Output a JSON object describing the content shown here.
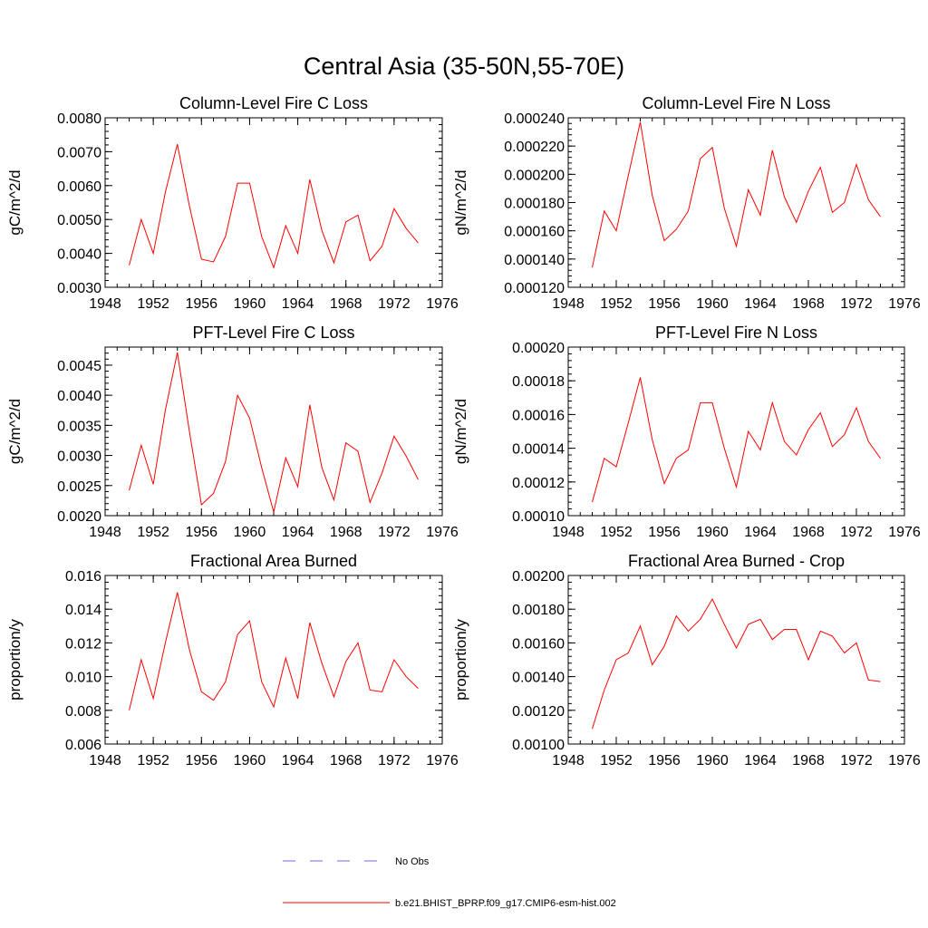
{
  "title": "Central Asia (35-50N,55-70E)",
  "colors": {
    "model": "#ff0000",
    "obs": "#6a6aff",
    "axis": "#000000"
  },
  "legend": {
    "obs_label": "No Obs",
    "model_label": "b.e21.BHIST_BPRP.f09_g17.CMIP6-esm-hist.002"
  },
  "chart_data": [
    {
      "type": "line",
      "title": "Column-Level Fire C Loss",
      "ylabel": "gC/m^2/d",
      "xlim": [
        1948,
        1976
      ],
      "ylim": [
        0.003,
        0.008
      ],
      "xticks": [
        "1948",
        "1952",
        "1956",
        "1960",
        "1964",
        "1968",
        "1972",
        "1976"
      ],
      "yticks": [
        "0.0030",
        "0.0040",
        "0.0050",
        "0.0060",
        "0.0070",
        "0.0080"
      ],
      "x": [
        1950,
        1951,
        1952,
        1953,
        1954,
        1955,
        1956,
        1957,
        1958,
        1959,
        1960,
        1961,
        1962,
        1963,
        1964,
        1965,
        1966,
        1967,
        1968,
        1969,
        1970,
        1971,
        1972,
        1973,
        1974
      ],
      "series": [
        {
          "values": [
            0.00365,
            0.005,
            0.004,
            0.0058,
            0.00722,
            0.0054,
            0.00383,
            0.00375,
            0.0045,
            0.00607,
            0.00607,
            0.0045,
            0.00358,
            0.00482,
            0.004,
            0.00618,
            0.00468,
            0.00372,
            0.00493,
            0.00513,
            0.00378,
            0.00421,
            0.00532,
            0.00474,
            0.00431
          ]
        }
      ]
    },
    {
      "type": "line",
      "title": "Column-Level Fire N Loss",
      "ylabel": "gN/m^2/d",
      "xlim": [
        1948,
        1976
      ],
      "ylim": [
        0.00012,
        0.00024
      ],
      "xticks": [
        "1948",
        "1952",
        "1956",
        "1960",
        "1964",
        "1968",
        "1972",
        "1976"
      ],
      "yticks": [
        "0.000120",
        "0.000140",
        "0.000160",
        "0.000180",
        "0.000200",
        "0.000220",
        "0.000240"
      ],
      "x": [
        1950,
        1951,
        1952,
        1953,
        1954,
        1955,
        1956,
        1957,
        1958,
        1959,
        1960,
        1961,
        1962,
        1963,
        1964,
        1965,
        1966,
        1967,
        1968,
        1969,
        1970,
        1971,
        1972,
        1973,
        1974
      ],
      "series": [
        {
          "values": [
            0.000134,
            0.000174,
            0.00016,
            0.000199,
            0.000237,
            0.000185,
            0.000153,
            0.000161,
            0.000174,
            0.000211,
            0.000219,
            0.000176,
            0.000149,
            0.000189,
            0.000171,
            0.000217,
            0.000184,
            0.000166,
            0.000188,
            0.000205,
            0.000173,
            0.00018,
            0.000207,
            0.000182,
            0.00017
          ]
        }
      ]
    },
    {
      "type": "line",
      "title": "PFT-Level Fire C Loss",
      "ylabel": "gC/m^2/d",
      "xlim": [
        1948,
        1976
      ],
      "ylim": [
        0.002,
        0.0048
      ],
      "xticks": [
        "1948",
        "1952",
        "1956",
        "1960",
        "1964",
        "1968",
        "1972",
        "1976"
      ],
      "yticks": [
        "0.0020",
        "0.0025",
        "0.0030",
        "0.0035",
        "0.0040",
        "0.0045"
      ],
      "ytickvals": [
        0.002,
        0.0025,
        0.003,
        0.0035,
        0.004,
        0.0045
      ],
      "x": [
        1950,
        1951,
        1952,
        1953,
        1954,
        1955,
        1956,
        1957,
        1958,
        1959,
        1960,
        1961,
        1962,
        1963,
        1964,
        1965,
        1966,
        1967,
        1968,
        1969,
        1970,
        1971,
        1972,
        1973,
        1974
      ],
      "series": [
        {
          "values": [
            0.00242,
            0.00317,
            0.00252,
            0.00375,
            0.00471,
            0.0034,
            0.00218,
            0.00237,
            0.0029,
            0.004,
            0.00362,
            0.0028,
            0.00206,
            0.00296,
            0.00248,
            0.00384,
            0.0028,
            0.00226,
            0.00321,
            0.00307,
            0.00222,
            0.00271,
            0.00332,
            0.00299,
            0.0026
          ]
        }
      ]
    },
    {
      "type": "line",
      "title": "PFT-Level Fire N Loss",
      "ylabel": "gN/m^2/d",
      "xlim": [
        1948,
        1976
      ],
      "ylim": [
        0.0001,
        0.0002
      ],
      "xticks": [
        "1948",
        "1952",
        "1956",
        "1960",
        "1964",
        "1968",
        "1972",
        "1976"
      ],
      "yticks": [
        "0.00010",
        "0.00012",
        "0.00014",
        "0.00016",
        "0.00018",
        "0.00020"
      ],
      "x": [
        1950,
        1951,
        1952,
        1953,
        1954,
        1955,
        1956,
        1957,
        1958,
        1959,
        1960,
        1961,
        1962,
        1963,
        1964,
        1965,
        1966,
        1967,
        1968,
        1969,
        1970,
        1971,
        1972,
        1973,
        1974
      ],
      "series": [
        {
          "values": [
            0.000108,
            0.000134,
            0.000129,
            0.000155,
            0.000182,
            0.000145,
            0.000119,
            0.000134,
            0.000139,
            0.000167,
            0.000167,
            0.00014,
            0.000117,
            0.00015,
            0.000139,
            0.000167,
            0.000144,
            0.000136,
            0.000151,
            0.000161,
            0.000141,
            0.000148,
            0.000164,
            0.000144,
            0.000134
          ]
        }
      ]
    },
    {
      "type": "line",
      "title": "Fractional Area Burned",
      "ylabel": "proportion/y",
      "xlim": [
        1948,
        1976
      ],
      "ylim": [
        0.006,
        0.016
      ],
      "xticks": [
        "1948",
        "1952",
        "1956",
        "1960",
        "1964",
        "1968",
        "1972",
        "1976"
      ],
      "yticks": [
        "0.006",
        "0.008",
        "0.010",
        "0.012",
        "0.014",
        "0.016"
      ],
      "x": [
        1950,
        1951,
        1952,
        1953,
        1954,
        1955,
        1956,
        1957,
        1958,
        1959,
        1960,
        1961,
        1962,
        1963,
        1964,
        1965,
        1966,
        1967,
        1968,
        1969,
        1970,
        1971,
        1972,
        1973,
        1974
      ],
      "series": [
        {
          "values": [
            0.008,
            0.011,
            0.0087,
            0.012,
            0.015,
            0.0116,
            0.0091,
            0.0086,
            0.0097,
            0.0125,
            0.0133,
            0.0097,
            0.0082,
            0.0111,
            0.0087,
            0.0132,
            0.0108,
            0.0088,
            0.0109,
            0.012,
            0.0092,
            0.0091,
            0.011,
            0.01,
            0.0093
          ]
        }
      ]
    },
    {
      "type": "line",
      "title": "Fractional Area Burned - Crop",
      "ylabel": "proportion/y",
      "xlim": [
        1948,
        1976
      ],
      "ylim": [
        0.001,
        0.002
      ],
      "xticks": [
        "1948",
        "1952",
        "1956",
        "1960",
        "1964",
        "1968",
        "1972",
        "1976"
      ],
      "yticks": [
        "0.00100",
        "0.00120",
        "0.00140",
        "0.00160",
        "0.00180",
        "0.00200"
      ],
      "x": [
        1950,
        1951,
        1952,
        1953,
        1954,
        1955,
        1956,
        1957,
        1958,
        1959,
        1960,
        1961,
        1962,
        1963,
        1964,
        1965,
        1966,
        1967,
        1968,
        1969,
        1970,
        1971,
        1972,
        1973,
        1974
      ],
      "series": [
        {
          "values": [
            0.00109,
            0.00132,
            0.0015,
            0.00154,
            0.0017,
            0.00147,
            0.00158,
            0.00176,
            0.00167,
            0.00174,
            0.00186,
            0.00171,
            0.00157,
            0.00171,
            0.00174,
            0.00162,
            0.00168,
            0.00168,
            0.0015,
            0.00167,
            0.00164,
            0.00154,
            0.0016,
            0.00138,
            0.00137
          ]
        }
      ]
    }
  ]
}
